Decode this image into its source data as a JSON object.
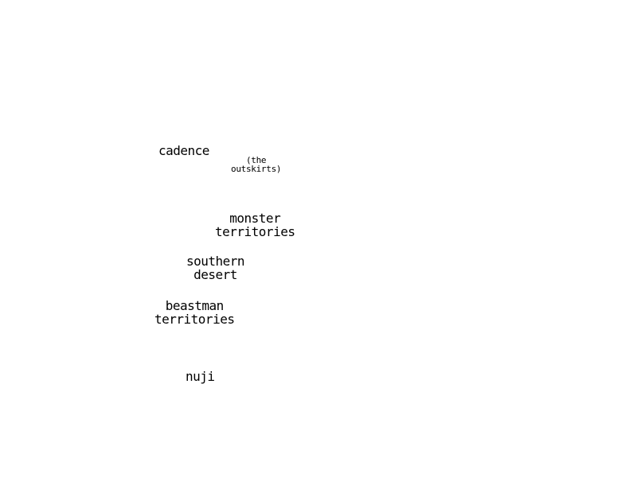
{
  "map": {
    "regions": [
      {
        "id": "cadence",
        "label": "cadence"
      },
      {
        "id": "outskirts",
        "label": "(the\noutskirts)"
      },
      {
        "id": "monster",
        "label": "monster\nterritories"
      },
      {
        "id": "southern",
        "label": "southern\ndesert"
      },
      {
        "id": "beastman",
        "label": "beastman\nterritories"
      },
      {
        "id": "nuji",
        "label": "nuji"
      }
    ]
  },
  "colors": {
    "background": "#ffffff",
    "text": "#000000"
  }
}
